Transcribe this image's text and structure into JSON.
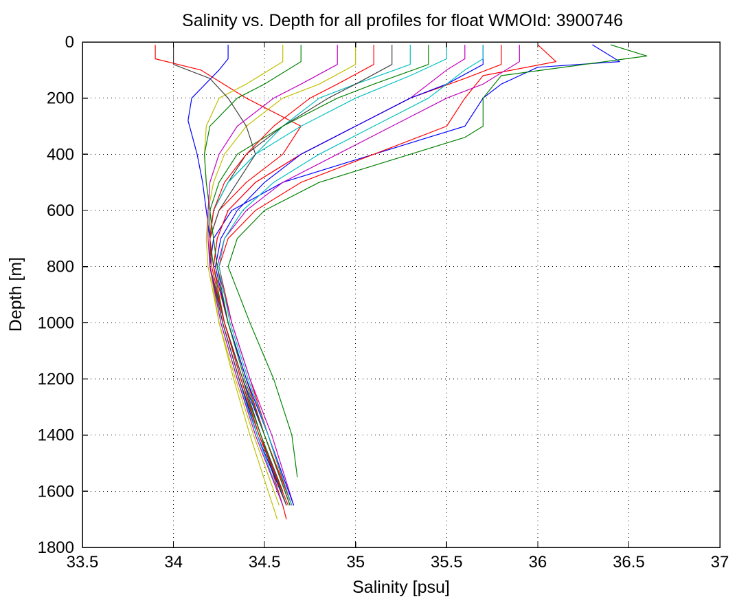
{
  "chart_data": {
    "type": "line",
    "title": "Salinity vs. Depth for all profiles for float WMOId: 3900746",
    "xlabel": "Salinity [psu]",
    "ylabel": "Depth [m]",
    "xlim": [
      33.5,
      37
    ],
    "ylim": [
      0,
      1800
    ],
    "y_reversed": true,
    "grid": true,
    "legend": "none",
    "x_ticks": [
      33.5,
      34,
      34.5,
      35,
      35.5,
      36,
      36.5,
      37
    ],
    "x_tick_labels": [
      "33.5",
      "34",
      "34.5",
      "35",
      "35.5",
      "36",
      "36.5",
      "37"
    ],
    "y_ticks": [
      0,
      200,
      400,
      600,
      800,
      1000,
      1200,
      1400,
      1600,
      1800
    ],
    "y_tick_labels": [
      "0",
      "200",
      "400",
      "600",
      "800",
      "1000",
      "1200",
      "1400",
      "1600",
      "1800"
    ],
    "series_colors": [
      "#0000ff",
      "#008000",
      "#ff0000",
      "#00bfbf",
      "#bf00bf",
      "#bfbf00",
      "#404040"
    ],
    "series": [
      {
        "color": "#0000ff",
        "depth": [
          10,
          70,
          90,
          150,
          200,
          300,
          400,
          500,
          600,
          700,
          800,
          1000,
          1200,
          1400,
          1650
        ],
        "salinity": [
          36.3,
          36.45,
          36.0,
          35.8,
          35.7,
          35.6,
          35.1,
          34.6,
          34.32,
          34.22,
          34.2,
          34.28,
          34.38,
          34.5,
          34.64
        ]
      },
      {
        "color": "#008000",
        "depth": [
          10,
          50,
          120,
          200,
          300,
          340,
          400,
          500,
          600,
          700,
          800,
          1000,
          1200,
          1400,
          1550
        ],
        "salinity": [
          36.4,
          36.6,
          35.8,
          35.7,
          35.7,
          35.6,
          35.3,
          34.8,
          34.5,
          34.35,
          34.3,
          34.42,
          34.55,
          34.65,
          34.68
        ]
      },
      {
        "color": "#ff0000",
        "depth": [
          10,
          60,
          100,
          200,
          300,
          400,
          500,
          600,
          700,
          800,
          1000,
          1200,
          1400,
          1650,
          1700
        ],
        "salinity": [
          33.9,
          33.9,
          34.15,
          34.4,
          34.7,
          34.6,
          34.4,
          34.25,
          34.2,
          34.2,
          34.28,
          34.38,
          34.48,
          34.6,
          34.62
        ]
      },
      {
        "color": "#ff0000",
        "depth": [
          10,
          70,
          120,
          200,
          300,
          400,
          500,
          600,
          700,
          800,
          1000,
          1200,
          1400,
          1600
        ],
        "salinity": [
          36.0,
          36.1,
          35.7,
          35.6,
          35.5,
          35.1,
          34.7,
          34.45,
          34.3,
          34.25,
          34.32,
          34.42,
          34.52,
          34.62
        ]
      },
      {
        "color": "#00bfbf",
        "depth": [
          10,
          80,
          150,
          200,
          300,
          400,
          500,
          600,
          700,
          800,
          1000,
          1200,
          1400,
          1650
        ],
        "salinity": [
          35.3,
          35.3,
          35.0,
          34.8,
          34.6,
          34.45,
          34.3,
          34.22,
          34.2,
          34.2,
          34.27,
          34.36,
          34.46,
          34.6
        ]
      },
      {
        "color": "#bf00bf",
        "depth": [
          10,
          60,
          100,
          150,
          200,
          300,
          400,
          500,
          600,
          700,
          800,
          1000,
          1200,
          1400,
          1650
        ],
        "salinity": [
          35.6,
          35.6,
          35.5,
          35.4,
          35.3,
          35.0,
          34.7,
          34.45,
          34.3,
          34.24,
          34.22,
          34.3,
          34.4,
          34.5,
          34.64
        ]
      },
      {
        "color": "#bfbf00",
        "depth": [
          10,
          70,
          150,
          200,
          300,
          400,
          500,
          600,
          700,
          800,
          1000,
          1200,
          1400,
          1700
        ],
        "salinity": [
          34.6,
          34.6,
          34.4,
          34.25,
          34.18,
          34.17,
          34.18,
          34.2,
          34.2,
          34.2,
          34.25,
          34.33,
          34.42,
          34.57
        ]
      },
      {
        "color": "#404040",
        "depth": [
          10,
          80,
          150,
          200,
          300,
          400,
          500,
          600,
          700,
          800,
          1000,
          1200,
          1400,
          1600
        ],
        "salinity": [
          35.2,
          35.2,
          35.0,
          34.85,
          34.6,
          34.4,
          34.3,
          34.22,
          34.2,
          34.2,
          34.28,
          34.38,
          34.48,
          34.6
        ]
      },
      {
        "color": "#0000ff",
        "depth": [
          10,
          60,
          100,
          200,
          280,
          400,
          500,
          600,
          700,
          800,
          1000,
          1200,
          1400,
          1650
        ],
        "salinity": [
          34.3,
          34.3,
          34.25,
          34.1,
          34.08,
          34.13,
          34.16,
          34.18,
          34.2,
          34.2,
          34.27,
          34.36,
          34.46,
          34.62
        ]
      },
      {
        "color": "#008000",
        "depth": [
          10,
          80,
          150,
          200,
          300,
          400,
          500,
          600,
          700,
          800,
          1000,
          1200,
          1400,
          1650
        ],
        "salinity": [
          35.4,
          35.4,
          35.1,
          34.9,
          34.6,
          34.35,
          34.25,
          34.2,
          34.2,
          34.22,
          34.28,
          34.37,
          34.48,
          34.62
        ]
      },
      {
        "color": "#ff0000",
        "depth": [
          10,
          80,
          130,
          200,
          300,
          400,
          500,
          600,
          700,
          800,
          1000,
          1200,
          1400,
          1650
        ],
        "salinity": [
          35.8,
          35.8,
          35.6,
          35.3,
          35.0,
          34.7,
          34.45,
          34.3,
          34.24,
          34.22,
          34.3,
          34.4,
          34.5,
          34.65
        ]
      },
      {
        "color": "#00bfbf",
        "depth": [
          10,
          60,
          120,
          200,
          300,
          400,
          500,
          600,
          700,
          800,
          1000,
          1200,
          1400,
          1650
        ],
        "salinity": [
          35.5,
          35.5,
          35.3,
          35.0,
          34.7,
          34.45,
          34.3,
          34.22,
          34.2,
          34.2,
          34.26,
          34.35,
          34.46,
          34.6
        ]
      },
      {
        "color": "#bf00bf",
        "depth": [
          10,
          70,
          150,
          200,
          300,
          400,
          500,
          600,
          700,
          800,
          1000,
          1200,
          1400,
          1650
        ],
        "salinity": [
          35.9,
          35.9,
          35.7,
          35.5,
          35.2,
          34.9,
          34.6,
          34.4,
          34.28,
          34.24,
          34.32,
          34.42,
          34.54,
          34.66
        ]
      },
      {
        "color": "#bfbf00",
        "depth": [
          10,
          80,
          150,
          200,
          300,
          400,
          500,
          600,
          700,
          800,
          1000,
          1200,
          1400,
          1650
        ],
        "salinity": [
          35.0,
          35.0,
          34.8,
          34.6,
          34.4,
          34.28,
          34.22,
          34.19,
          34.18,
          34.19,
          34.25,
          34.34,
          34.44,
          34.58
        ]
      },
      {
        "color": "#404040",
        "depth": [
          10,
          80,
          130,
          200,
          300,
          400,
          500,
          600,
          700,
          800,
          1000,
          1200,
          1400,
          1650
        ],
        "salinity": [
          34.0,
          34.0,
          34.2,
          34.3,
          34.4,
          34.45,
          34.35,
          34.25,
          34.2,
          34.2,
          34.27,
          34.36,
          34.47,
          34.62
        ]
      },
      {
        "color": "#0000ff",
        "depth": [
          10,
          80,
          150,
          200,
          300,
          400,
          500,
          600,
          700,
          800,
          1000,
          1200,
          1400,
          1650
        ],
        "salinity": [
          35.7,
          35.7,
          35.5,
          35.3,
          35.0,
          34.7,
          34.5,
          34.35,
          34.26,
          34.23,
          34.3,
          34.4,
          34.52,
          34.66
        ]
      },
      {
        "color": "#008000",
        "depth": [
          10,
          70,
          150,
          200,
          300,
          400,
          500,
          600,
          700,
          800,
          1000,
          1200,
          1400,
          1650
        ],
        "salinity": [
          34.7,
          34.7,
          34.5,
          34.35,
          34.2,
          34.17,
          34.18,
          34.2,
          34.22,
          34.24,
          34.3,
          34.39,
          34.5,
          34.64
        ]
      },
      {
        "color": "#ff0000",
        "depth": [
          10,
          80,
          150,
          200,
          300,
          400,
          500,
          600,
          700,
          800,
          1000,
          1200,
          1400,
          1650
        ],
        "salinity": [
          35.1,
          35.1,
          34.9,
          34.75,
          34.55,
          34.4,
          34.28,
          34.22,
          34.2,
          34.21,
          34.28,
          34.37,
          34.47,
          34.63
        ]
      },
      {
        "color": "#00bfbf",
        "depth": [
          10,
          60,
          100,
          200,
          300,
          400,
          500,
          600,
          700,
          800,
          1000,
          1200,
          1400,
          1650
        ],
        "salinity": [
          35.7,
          35.7,
          35.6,
          35.4,
          35.1,
          34.8,
          34.55,
          34.38,
          34.28,
          34.25,
          34.31,
          34.41,
          34.52,
          34.65
        ]
      },
      {
        "color": "#bf00bf",
        "depth": [
          10,
          80,
          150,
          200,
          300,
          400,
          500,
          600,
          700,
          800,
          1000,
          1200,
          1400,
          1650
        ],
        "salinity": [
          34.9,
          34.9,
          34.7,
          34.55,
          34.35,
          34.25,
          34.2,
          34.19,
          34.19,
          34.2,
          34.26,
          34.35,
          34.45,
          34.6
        ]
      }
    ]
  }
}
